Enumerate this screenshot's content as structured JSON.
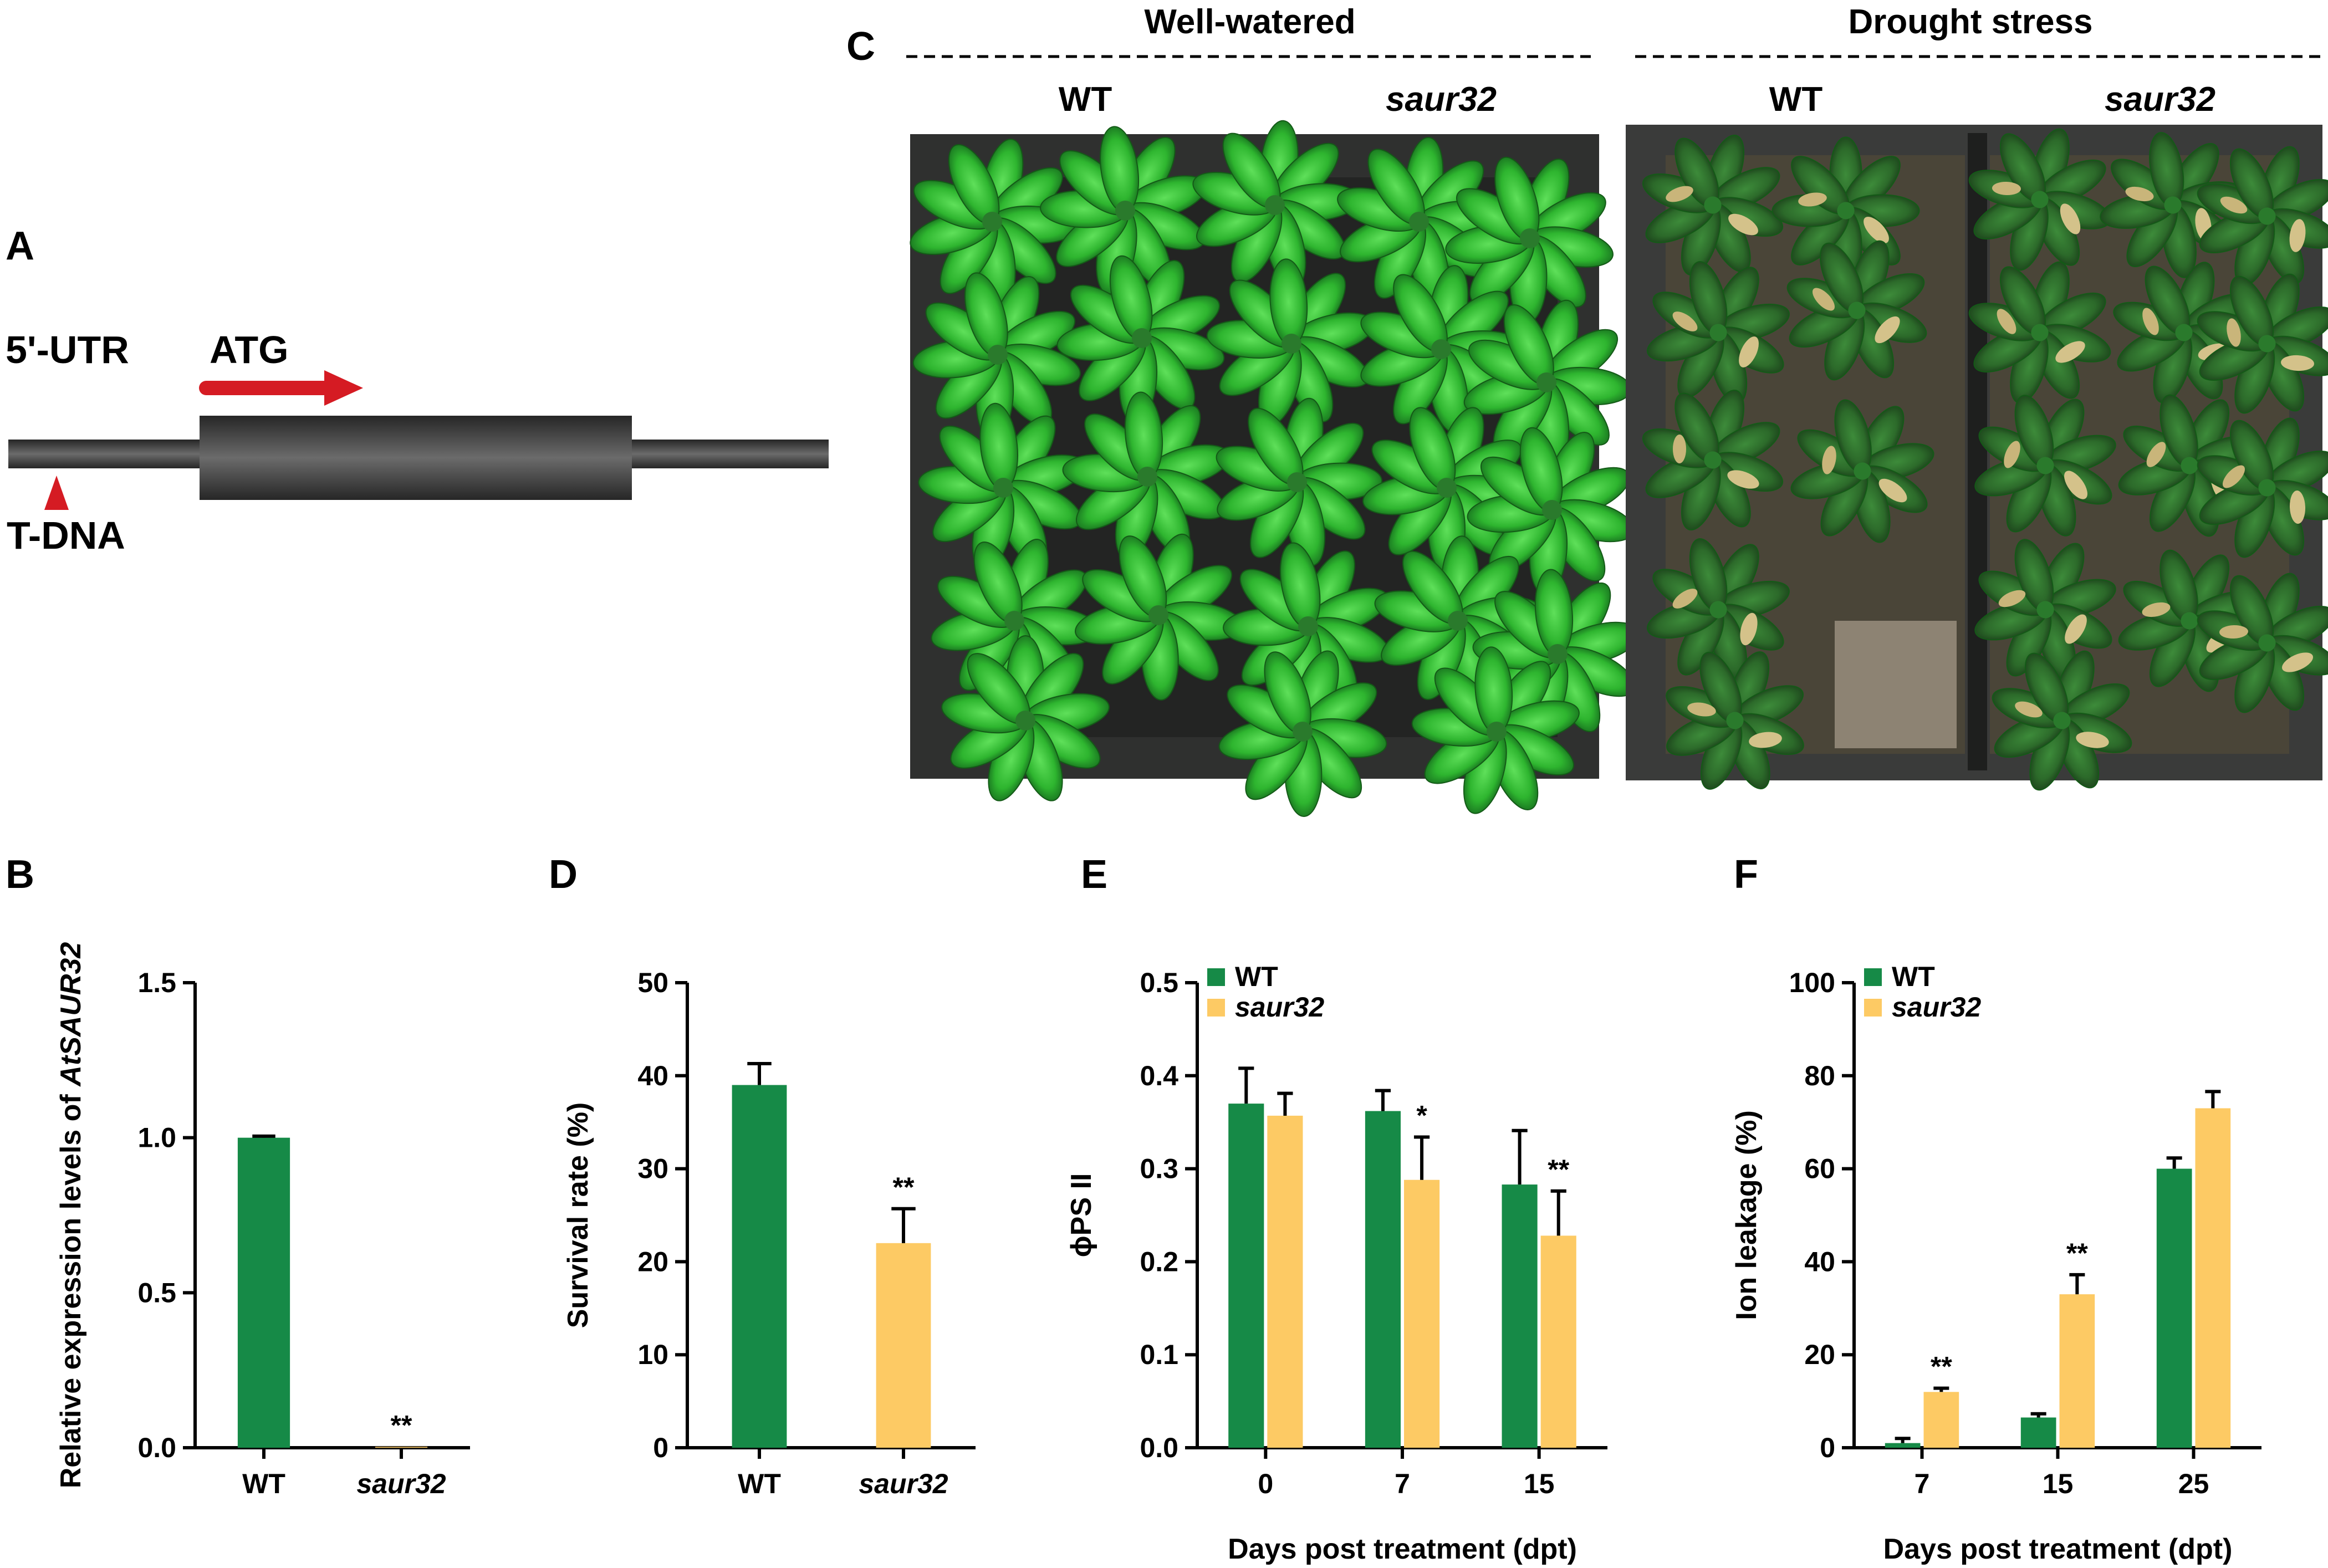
{
  "colors": {
    "wt": "#168a47",
    "mutant": "#fdca64",
    "arrow": "#d51b23"
  },
  "panels": {
    "A": {
      "letter": "A",
      "utr_label": "5'-UTR",
      "atg_label": "ATG",
      "tdna_label": "T-DNA",
      "gene_icon": "gene-structure-diagram"
    },
    "C": {
      "letter": "C",
      "well_watered": {
        "title": "Well-watered",
        "wt": "WT",
        "mutant": "saur32"
      },
      "drought": {
        "title": "Drought stress",
        "wt": "WT",
        "mutant": "saur32"
      },
      "photo_icon": "plant-tray-photo"
    }
  },
  "chart_data": [
    {
      "panel": "B",
      "type": "bar",
      "categories": [
        "WT",
        "saur32"
      ],
      "values": [
        1.0,
        0.003
      ],
      "errors": [
        0.005,
        0.0
      ],
      "ylabel": "Relative expression levels of AtSAUR32",
      "ylabel_plain": "Relative expression levels of ",
      "ylabel_italic": "AtSAUR32",
      "ylim": [
        0,
        1.5
      ],
      "yticks": [
        "0.0",
        "0.5",
        "1.0",
        "1.5"
      ],
      "yticks_values": [
        0,
        0.5,
        1.0,
        1.5
      ],
      "annotations": [
        "",
        "**"
      ],
      "colors": [
        "#168a47",
        "#fdca64"
      ]
    },
    {
      "panel": "D",
      "type": "bar",
      "categories": [
        "WT",
        "saur32"
      ],
      "values": [
        39,
        22
      ],
      "errors": [
        2.3,
        3.7
      ],
      "ylabel": "Survival rate (%)",
      "ylim": [
        0,
        50
      ],
      "yticks": [
        "0",
        "10",
        "20",
        "30",
        "40",
        "50"
      ],
      "yticks_values": [
        0,
        10,
        20,
        30,
        40,
        50
      ],
      "annotations": [
        "",
        "**"
      ],
      "colors": [
        "#168a47",
        "#fdca64"
      ]
    },
    {
      "panel": "E",
      "type": "bar",
      "categories": [
        "0",
        "7",
        "15"
      ],
      "series": [
        {
          "name": "WT",
          "values": [
            0.37,
            0.362,
            0.283
          ],
          "errors": [
            0.038,
            0.022,
            0.058
          ],
          "annotations": [
            "",
            "",
            ""
          ]
        },
        {
          "name": "saur32",
          "values": [
            0.357,
            0.288,
            0.228
          ],
          "errors": [
            0.024,
            0.046,
            0.048
          ],
          "annotations": [
            "",
            "*",
            "**"
          ]
        }
      ],
      "ylabel": "ϕPS II",
      "xlabel": "Days post treatment (dpt)",
      "ylim": [
        0,
        0.5
      ],
      "yticks": [
        "0.0",
        "0.1",
        "0.2",
        "0.3",
        "0.4",
        "0.5"
      ],
      "yticks_values": [
        0,
        0.1,
        0.2,
        0.3,
        0.4,
        0.5
      ],
      "legend": "top-left"
    },
    {
      "panel": "F",
      "type": "bar",
      "categories": [
        "7",
        "15",
        "25"
      ],
      "series": [
        {
          "name": "WT",
          "values": [
            1.0,
            6.5,
            60
          ],
          "errors": [
            1.0,
            0.8,
            2.3
          ],
          "annotations": [
            "",
            "",
            ""
          ]
        },
        {
          "name": "saur32",
          "values": [
            12,
            33,
            73
          ],
          "errors": [
            0.8,
            4.2,
            3.6
          ],
          "annotations": [
            "**",
            "**",
            ""
          ]
        }
      ],
      "ylabel": "Ion leakage (%)",
      "xlabel": "Days post treatment (dpt)",
      "ylim": [
        0,
        100
      ],
      "yticks": [
        "0",
        "20",
        "40",
        "60",
        "80",
        "100"
      ],
      "yticks_values": [
        0,
        20,
        40,
        60,
        80,
        100
      ],
      "legend": "top-left"
    }
  ]
}
